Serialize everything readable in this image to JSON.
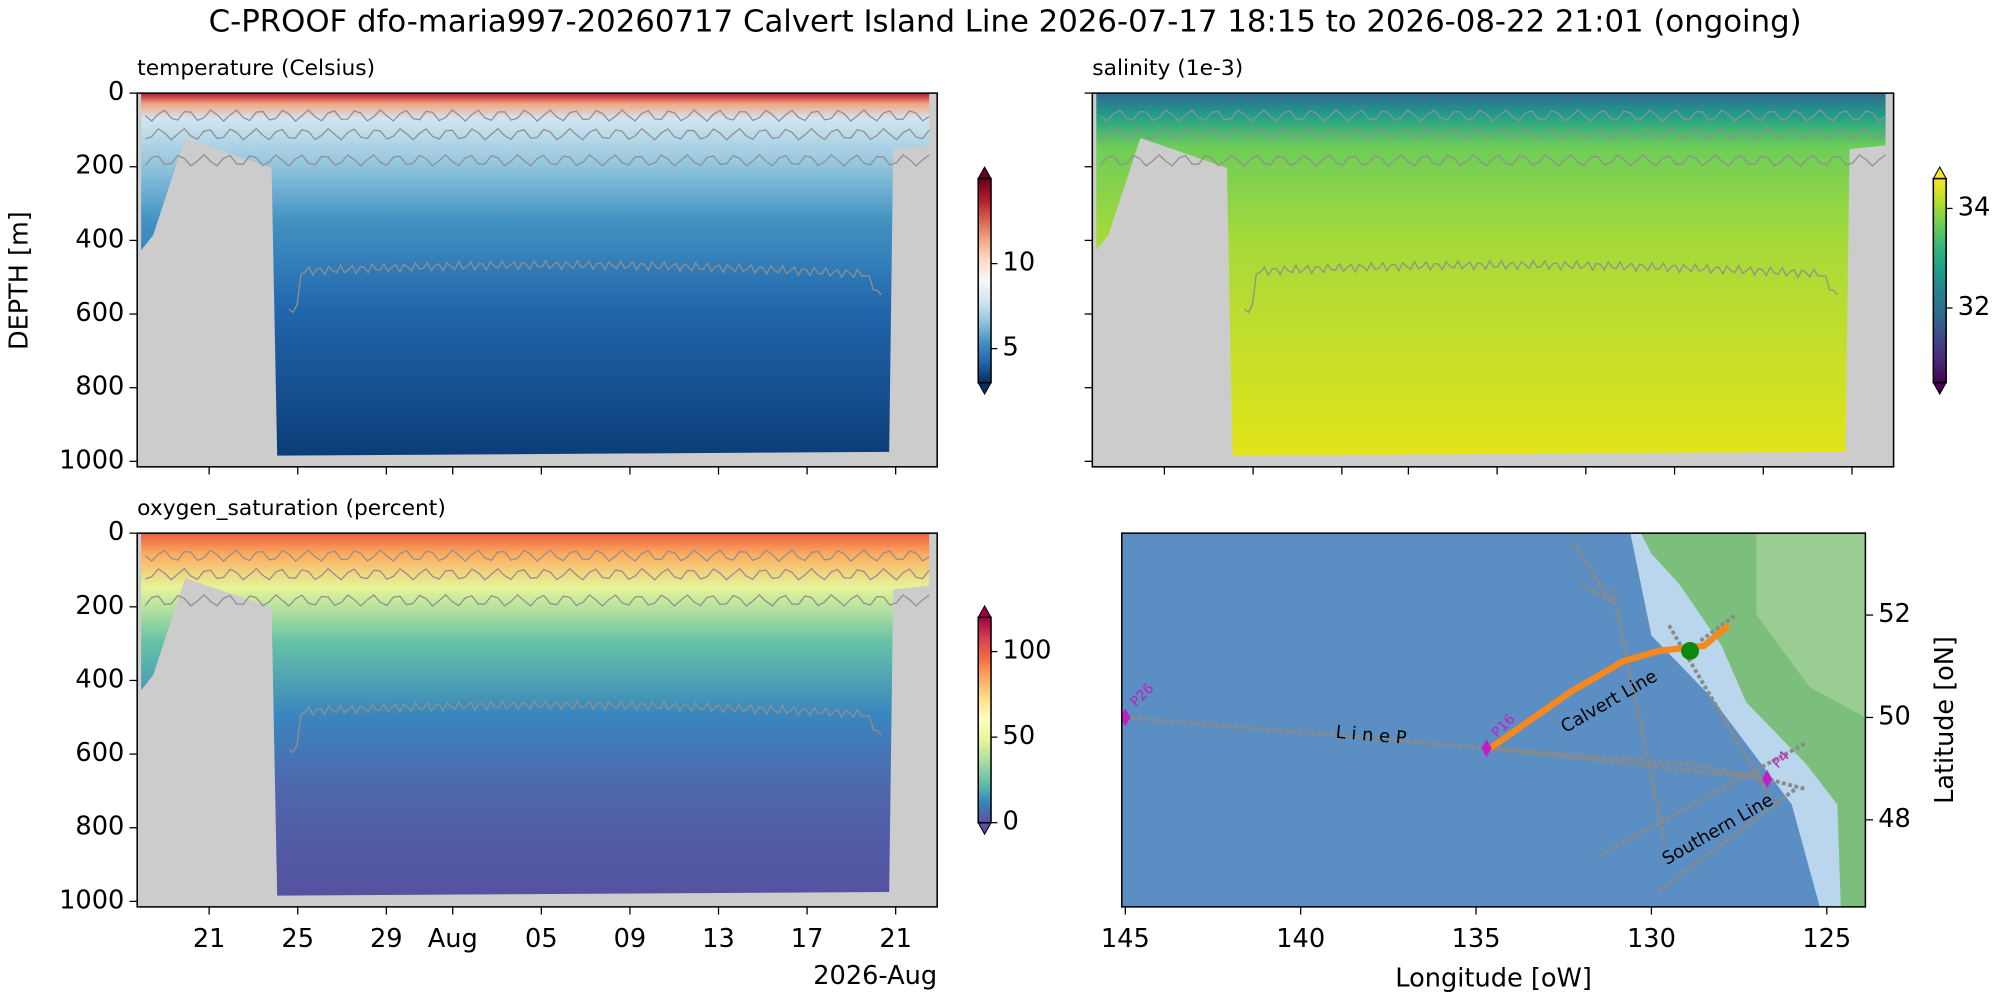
{
  "title": "C-PROOF dfo-maria997-20260717   Calvert Island Line   2026-07-17 18:15 to 2026-08-22 21:01 (ongoing)",
  "chart_data": [
    {
      "type": "section",
      "title": "temperature (Celsius)",
      "ylabel": "DEPTH [m]",
      "ylim": [
        1015,
        0
      ],
      "yticks": [
        0,
        200,
        400,
        600,
        800,
        1000
      ],
      "colorbar": {
        "lim": [
          3,
          15
        ],
        "ticks": [
          5,
          10
        ],
        "colors": [
          "#053061",
          "#2166ac",
          "#4393c3",
          "#92c5de",
          "#d1e5f0",
          "#f7f7f7",
          "#fddbc7",
          "#f4a582",
          "#d6604d",
          "#b2182b",
          "#67001f"
        ]
      }
    },
    {
      "type": "section",
      "title": "salinity (1e-3)",
      "ylim": [
        1015,
        0
      ],
      "yticks": [
        0,
        200,
        400,
        600,
        800,
        1000
      ],
      "colorbar": {
        "lim": [
          30.5,
          34.6
        ],
        "ticks": [
          32,
          34
        ],
        "colors": [
          "#440154",
          "#482878",
          "#3e4989",
          "#31688e",
          "#26828e",
          "#1f9e89",
          "#35b779",
          "#6ece58",
          "#b5de2b",
          "#fde725"
        ]
      }
    },
    {
      "type": "section",
      "title": "oxygen_saturation (percent)",
      "ylim": [
        1015,
        0
      ],
      "yticks": [
        0,
        200,
        400,
        600,
        800,
        1000
      ],
      "xlim": [
        "2026-07-17T18:00",
        "2026-08-22T21:00"
      ],
      "xticks": [
        {
          "value": "2026-07-21",
          "label": "21"
        },
        {
          "value": "2026-07-25",
          "label": "25"
        },
        {
          "value": "2026-07-29",
          "label": "29"
        },
        {
          "value": "2026-08-01",
          "label": "Aug"
        },
        {
          "value": "2026-08-05",
          "label": "05"
        },
        {
          "value": "2026-08-09",
          "label": "09"
        },
        {
          "value": "2026-08-13",
          "label": "13"
        },
        {
          "value": "2026-08-17",
          "label": "17"
        },
        {
          "value": "2026-08-21",
          "label": "21"
        }
      ],
      "xoffset_label": "2026-Aug",
      "colorbar": {
        "lim": [
          0,
          120
        ],
        "ticks": [
          0,
          50,
          100
        ],
        "colors": [
          "#5e4fa2",
          "#3288bd",
          "#66c2a5",
          "#abdda4",
          "#e6f598",
          "#ffffbf",
          "#fee08b",
          "#fdae61",
          "#f46d43",
          "#d53e4f",
          "#9e0142"
        ]
      }
    },
    {
      "type": "map",
      "xlabel": "Longitude [oW]",
      "ylabel": "Latitude [oN]",
      "xlim": [
        145.1,
        123.9
      ],
      "xticks": [
        145,
        140,
        135,
        130,
        125
      ],
      "ylim": [
        46.3,
        53.6
      ],
      "yticks": [
        48,
        50,
        52
      ],
      "stations": [
        {
          "label": "P26",
          "lon": 145,
          "lat": 50
        },
        {
          "label": "P16",
          "lon": 134.7,
          "lat": 49.4
        },
        {
          "label": "P4",
          "lon": 126.7,
          "lat": 48.8
        }
      ],
      "line_labels": [
        "L   i   n   e     P",
        "Calvert Line",
        "Southern Line"
      ]
    }
  ]
}
